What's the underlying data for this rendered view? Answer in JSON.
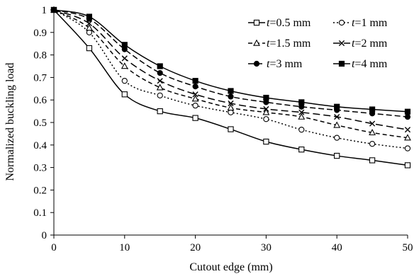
{
  "chart_data": {
    "type": "line",
    "xlabel": "Cutout edge (mm)",
    "ylabel": "Normalized buckling load",
    "xlim": [
      0,
      50
    ],
    "ylim": [
      0,
      1
    ],
    "x_ticks": [
      "0",
      "10",
      "20",
      "30",
      "40",
      "50"
    ],
    "y_ticks": [
      "0",
      "0.1",
      "0.2",
      "0.3",
      "0.4",
      "0.5",
      "0.6",
      "0.7",
      "0.8",
      "0.9",
      "1"
    ],
    "grid": false,
    "legend_position": "top-right",
    "x": [
      0,
      5,
      10,
      15,
      20,
      25,
      30,
      35,
      40,
      45,
      50
    ],
    "series": [
      {
        "name": "t=0.5 mm",
        "legend_var": "t",
        "legend_rest": "=0.5 mm",
        "marker": "open-square",
        "dash": "solid",
        "values": [
          1,
          0.83,
          0.625,
          0.55,
          0.52,
          0.47,
          0.415,
          0.38,
          0.352,
          0.332,
          0.31
        ]
      },
      {
        "name": "t=1 mm",
        "legend_var": "t",
        "legend_rest": "=1 mm",
        "marker": "open-circle",
        "dash": "dotted",
        "values": [
          1,
          0.9,
          0.685,
          0.62,
          0.575,
          0.545,
          0.515,
          0.468,
          0.432,
          0.405,
          0.385
        ]
      },
      {
        "name": "t=1.5 mm",
        "legend_var": "t",
        "legend_rest": "=1.5 mm",
        "marker": "open-triangle",
        "dash": "short-dash",
        "values": [
          1,
          0.92,
          0.75,
          0.655,
          0.605,
          0.565,
          0.545,
          0.525,
          0.488,
          0.455,
          0.432
        ]
      },
      {
        "name": "t=2 mm",
        "legend_var": "t",
        "legend_rest": "=2 mm",
        "marker": "cross",
        "dash": "long-dash",
        "values": [
          1,
          0.94,
          0.785,
          0.685,
          0.625,
          0.585,
          0.56,
          0.545,
          0.525,
          0.495,
          0.468
        ]
      },
      {
        "name": "t=3 mm",
        "legend_var": "t",
        "legend_rest": "=3 mm",
        "marker": "filled-circle",
        "dash": "dash",
        "values": [
          1,
          0.96,
          0.825,
          0.72,
          0.66,
          0.615,
          0.59,
          0.57,
          0.555,
          0.54,
          0.525
        ]
      },
      {
        "name": "t=4 mm",
        "legend_var": "t",
        "legend_rest": "=4 mm",
        "marker": "filled-square",
        "dash": "solid",
        "values": [
          1,
          0.97,
          0.845,
          0.75,
          0.685,
          0.64,
          0.61,
          0.59,
          0.57,
          0.558,
          0.548
        ]
      }
    ]
  }
}
